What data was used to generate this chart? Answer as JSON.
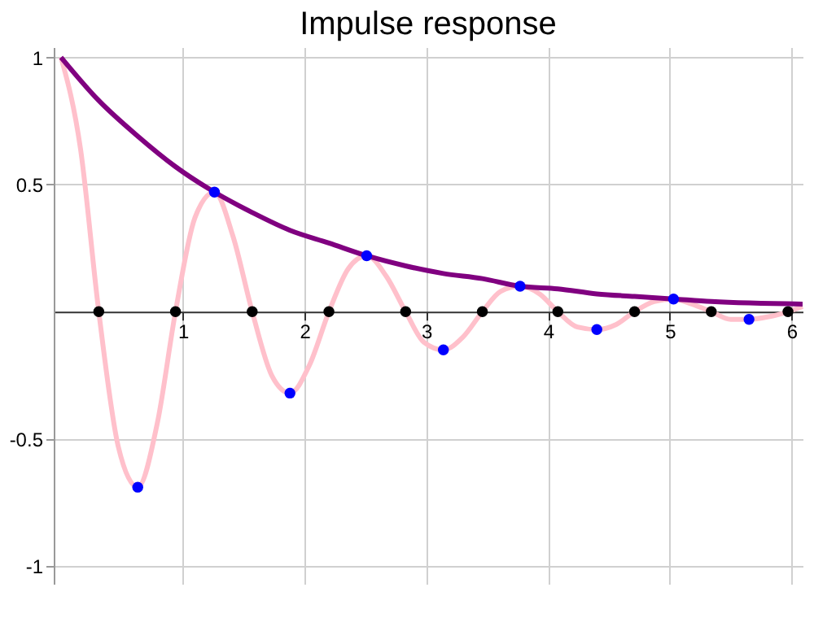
{
  "chart_data": {
    "type": "line",
    "title": "Impulse response",
    "xlim": [
      -0.06,
      6.09
    ],
    "ylim": [
      -1.07,
      1.04
    ],
    "xticks": [
      1,
      2,
      3,
      4,
      5,
      6
    ],
    "yticks": [
      -1,
      -0.5,
      0.5,
      1
    ],
    "grid": true,
    "line_style": "solid",
    "series": [
      {
        "color": "#ffc0cb",
        "marker": "none",
        "x": [
          0,
          0.16,
          0.31,
          0.47,
          0.63,
          0.79,
          0.94,
          1.1,
          1.26,
          1.41,
          1.57,
          1.73,
          1.88,
          2.04,
          2.2,
          2.36,
          2.51,
          2.67,
          2.83,
          2.98,
          3.14,
          3.3,
          3.46,
          3.61,
          3.77,
          3.93,
          4.08,
          4.24,
          4.4,
          4.56,
          4.71,
          4.87,
          5.03,
          5.18,
          5.34,
          5.5,
          5.65,
          5.81,
          5.97,
          6.09
        ],
        "values": [
          1,
          0.64,
          0,
          -0.53,
          -0.69,
          -0.44,
          0,
          0.37,
          0.47,
          0.3,
          0,
          -0.25,
          -0.32,
          -0.21,
          0,
          0.17,
          0.22,
          0.14,
          0,
          -0.12,
          -0.15,
          -0.1,
          0,
          0.08,
          0.1,
          0.07,
          0,
          -0.06,
          -0.07,
          -0.05,
          0,
          0.04,
          0.05,
          0.03,
          0,
          -0.03,
          -0.03,
          -0.02,
          0,
          0.02
        ]
      },
      {
        "color": "#800080",
        "marker": "none",
        "x": [
          0,
          0.31,
          0.63,
          0.94,
          1.26,
          1.57,
          1.88,
          2.2,
          2.51,
          2.83,
          3.14,
          3.46,
          3.77,
          4.08,
          4.4,
          4.71,
          5.03,
          5.34,
          6.09
        ],
        "values": [
          1,
          0.83,
          0.69,
          0.57,
          0.47,
          0.39,
          0.32,
          0.27,
          0.22,
          0.18,
          0.15,
          0.13,
          0.1,
          0.09,
          0.07,
          0.06,
          0.05,
          0.04,
          0.03
        ]
      },
      {
        "type": "scatter",
        "color": "#000000",
        "marker": "circle",
        "x": [
          0.31,
          0.94,
          1.57,
          2.2,
          2.83,
          3.46,
          4.08,
          4.71,
          5.34,
          5.97
        ],
        "values": [
          0,
          0,
          0,
          0,
          0,
          0,
          0,
          0,
          0,
          0
        ]
      },
      {
        "type": "scatter",
        "color": "#0000ff",
        "marker": "circle",
        "x": [
          0.63,
          1.26,
          1.88,
          2.51,
          3.14,
          3.77,
          4.4,
          5.03,
          5.65
        ],
        "values": [
          -0.69,
          0.47,
          -0.32,
          0.22,
          -0.15,
          0.1,
          -0.07,
          0.05,
          -0.03
        ]
      }
    ]
  }
}
